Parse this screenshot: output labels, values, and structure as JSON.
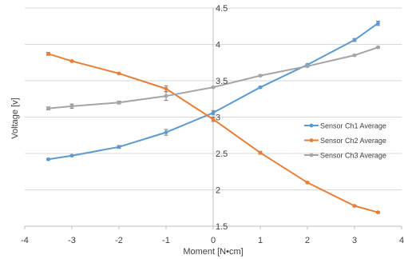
{
  "chart_data": {
    "type": "scatter",
    "title": "",
    "xlabel": "Moment [N•cm]",
    "ylabel": "Voltage [v]",
    "xlim": [
      -4,
      4
    ],
    "ylim": [
      1.5,
      4.5
    ],
    "x_ticks": [
      -4,
      -3,
      -2,
      -1,
      0,
      1,
      2,
      3,
      4
    ],
    "y_ticks": [
      1.5,
      2,
      2.5,
      3,
      3.5,
      4,
      4.5
    ],
    "x_tick_labels": [
      "-4",
      "-3",
      "-2",
      "-1",
      "0",
      "1",
      "2",
      "3",
      "4"
    ],
    "y_tick_labels": [
      "1.5",
      "2",
      "2.5",
      "3",
      "3.5",
      "4",
      "4.5"
    ],
    "grid": "horizontal",
    "legend_position": "right",
    "series": [
      {
        "name": "Sensor Ch1 Average",
        "color": "#5B9BD5",
        "x": [
          -3.5,
          -3,
          -2,
          -1,
          0,
          1,
          2,
          3,
          3.5
        ],
        "y": [
          2.42,
          2.47,
          2.59,
          2.79,
          3.06,
          3.41,
          3.72,
          4.06,
          4.29
        ],
        "err": [
          0.01,
          0.01,
          0.02,
          0.04,
          0.03,
          0.01,
          0.01,
          0.02,
          0.03
        ]
      },
      {
        "name": "Sensor Ch2 Average",
        "color": "#ED7D31",
        "x": [
          -3.5,
          -3,
          -2,
          -1,
          0,
          1,
          2,
          3,
          3.5
        ],
        "y": [
          3.87,
          3.77,
          3.6,
          3.39,
          2.97,
          2.51,
          2.1,
          1.78,
          1.69
        ],
        "err": [
          0.02,
          0.01,
          0.01,
          0.04,
          0.03,
          0.02,
          0.01,
          0.01,
          0.01
        ]
      },
      {
        "name": "Sensor Ch3 Average",
        "color": "#A5A5A5",
        "x": [
          -3.5,
          -3,
          -2,
          -1,
          0,
          1,
          2,
          3,
          3.5
        ],
        "y": [
          3.12,
          3.15,
          3.2,
          3.29,
          3.41,
          3.57,
          3.7,
          3.85,
          3.96
        ],
        "err": [
          0.02,
          0.03,
          0.02,
          0.06,
          0.01,
          0.01,
          0.01,
          0.01,
          0.01
        ]
      }
    ]
  }
}
